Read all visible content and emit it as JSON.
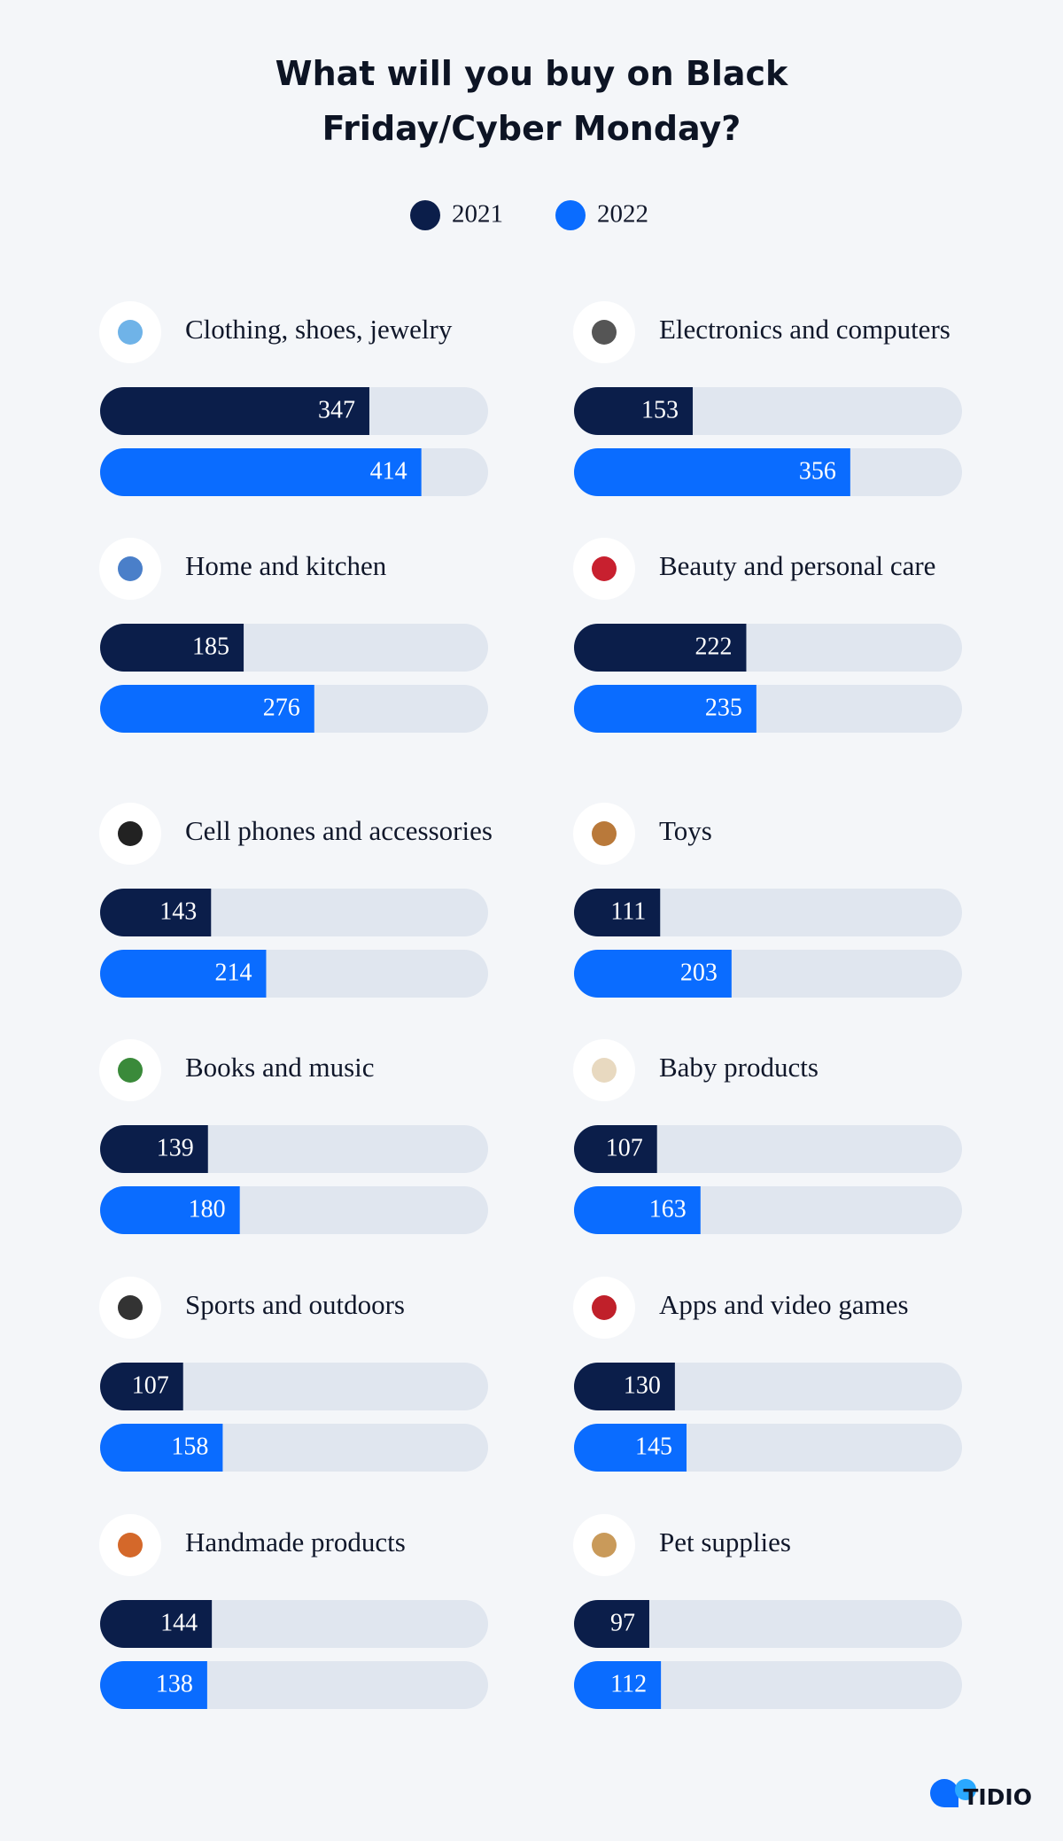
{
  "chart_data": {
    "type": "bar",
    "title": "What will you buy on Black Friday/Cyber Monday?",
    "categories": [
      "Clothing, shoes, jewelry",
      "Electronics and computers",
      "Home and kitchen",
      "Beauty and personal care",
      "Cell phones and accessories",
      "Toys",
      "Books and music",
      "Baby products",
      "Sports and outdoors",
      "Apps and video games",
      "Handmade products",
      "Pet supplies"
    ],
    "series": [
      {
        "name": "2021",
        "color": "#0b1e4a",
        "values": [
          347,
          153,
          185,
          222,
          143,
          111,
          139,
          107,
          107,
          130,
          144,
          97
        ]
      },
      {
        "name": "2022",
        "color": "#0a6cff",
        "values": [
          414,
          356,
          276,
          235,
          214,
          203,
          180,
          163,
          158,
          145,
          138,
          112
        ]
      }
    ],
    "xlim": [
      0,
      500
    ]
  },
  "brand": "TIDIO"
}
